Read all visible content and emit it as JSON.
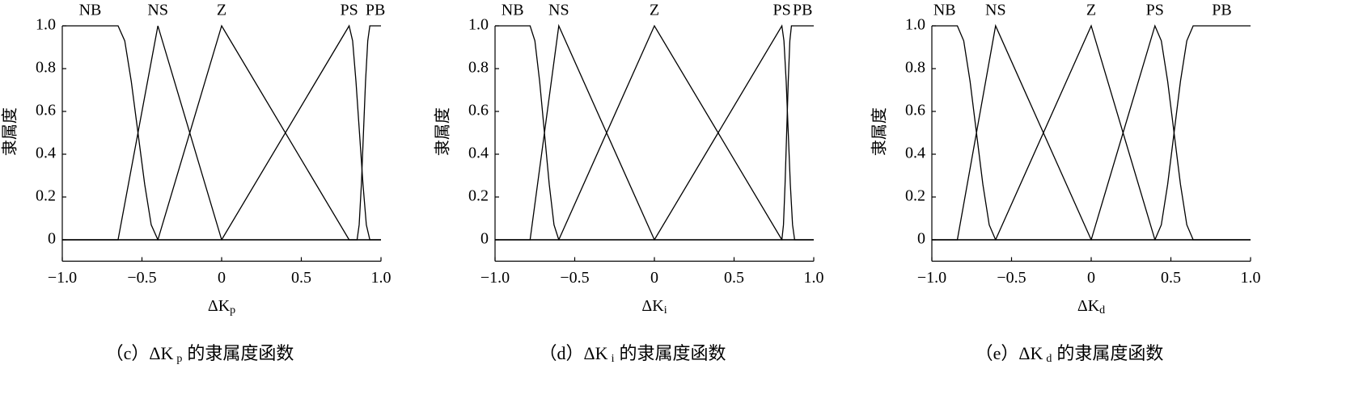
{
  "chart_data": [
    {
      "type": "line",
      "x_label": "ΔK",
      "x_label_sub": "p",
      "y_label": "隶属度",
      "caption": [
        "（c）ΔK",
        "p",
        "的隶属度函数"
      ],
      "xlim": [
        -1,
        1
      ],
      "ylim": [
        -0.1,
        1
      ],
      "xticks": [
        {
          "value": -1,
          "label": "−1.0"
        },
        {
          "value": -0.5,
          "label": "−0.5"
        },
        0,
        0.5,
        {
          "value": 1,
          "label": "1.0"
        }
      ],
      "yticks": [
        0,
        0.2,
        0.4,
        0.6,
        0.8,
        {
          "value": 1,
          "label": "1.0"
        }
      ],
      "series": [
        {
          "name": "NB",
          "color": "#000000",
          "x": [
            -1,
            -0.65,
            -0.608,
            -0.567,
            -0.525,
            -0.483,
            -0.442,
            -0.4,
            1
          ],
          "values": [
            1,
            1,
            0.93,
            0.74,
            0.5,
            0.26,
            0.07,
            0,
            0
          ]
        },
        {
          "name": "NS",
          "color": "#000000",
          "x": [
            -1,
            -0.65,
            -0.4,
            0,
            1
          ],
          "values": [
            0,
            0,
            1,
            0,
            0
          ]
        },
        {
          "name": "Z",
          "color": "#000000",
          "x": [
            -1,
            -0.4,
            0,
            0.8,
            1
          ],
          "values": [
            0,
            0,
            1,
            0,
            0
          ]
        },
        {
          "name": "PS",
          "color": "#000000",
          "x": [
            -1,
            0,
            0.8,
            0.822,
            0.843,
            0.865,
            0.887,
            0.908,
            0.93,
            1
          ],
          "values": [
            0,
            0,
            1,
            0.93,
            0.74,
            0.5,
            0.26,
            0.07,
            0,
            0
          ]
        },
        {
          "name": "PB",
          "color": "#000000",
          "x": [
            -1,
            0.85,
            0.863,
            0.877,
            0.89,
            0.903,
            0.917,
            0.93,
            1
          ],
          "values": [
            0,
            0,
            0.07,
            0.26,
            0.5,
            0.74,
            0.93,
            1,
            1
          ]
        }
      ]
    },
    {
      "type": "line",
      "x_label": "ΔK",
      "x_label_sub": "i",
      "y_label": "隶属度",
      "caption": [
        "（d）ΔK",
        "i",
        "的隶属度函数"
      ],
      "xlim": [
        -1,
        1
      ],
      "ylim": [
        -0.1,
        1
      ],
      "xticks": [
        {
          "value": -1,
          "label": "−1.0"
        },
        {
          "value": -0.5,
          "label": "−0.5"
        },
        0,
        0.5,
        {
          "value": 1,
          "label": "1.0"
        }
      ],
      "yticks": [
        0,
        0.2,
        0.4,
        0.6,
        0.8,
        {
          "value": 1,
          "label": "1.0"
        }
      ],
      "series": [
        {
          "name": "NB",
          "color": "#000000",
          "x": [
            -1,
            -0.78,
            -0.75,
            -0.72,
            -0.69,
            -0.66,
            -0.63,
            -0.6,
            1
          ],
          "values": [
            1,
            1,
            0.93,
            0.74,
            0.5,
            0.26,
            0.07,
            0,
            0
          ]
        },
        {
          "name": "NS",
          "color": "#000000",
          "x": [
            -1,
            -0.78,
            -0.6,
            0,
            1
          ],
          "values": [
            0,
            0,
            1,
            0,
            0
          ]
        },
        {
          "name": "Z",
          "color": "#000000",
          "x": [
            -1,
            -0.6,
            0,
            0.8,
            1
          ],
          "values": [
            0,
            0,
            1,
            0,
            0
          ]
        },
        {
          "name": "PS",
          "color": "#000000",
          "x": [
            -1,
            0,
            0.8,
            0.813,
            0.827,
            0.84,
            0.853,
            0.867,
            0.88,
            1
          ],
          "values": [
            0,
            0,
            1,
            0.93,
            0.74,
            0.5,
            0.26,
            0.07,
            0,
            0
          ]
        },
        {
          "name": "PB",
          "color": "#000000",
          "x": [
            -1,
            0.8,
            0.81,
            0.82,
            0.83,
            0.84,
            0.85,
            0.86,
            1
          ],
          "values": [
            0,
            0,
            0.07,
            0.26,
            0.5,
            0.74,
            0.93,
            1,
            1
          ]
        }
      ]
    },
    {
      "type": "line",
      "x_label": "ΔK",
      "x_label_sub": "d",
      "y_label": "隶属度",
      "caption": [
        "（e）ΔK",
        "d",
        "的隶属度函数"
      ],
      "xlim": [
        -1,
        1
      ],
      "ylim": [
        -0.1,
        1
      ],
      "xticks": [
        {
          "value": -1,
          "label": "−1.0"
        },
        {
          "value": -0.5,
          "label": "−0.5"
        },
        0,
        0.5,
        {
          "value": 1,
          "label": "1.0"
        }
      ],
      "yticks": [
        0,
        0.2,
        0.4,
        0.6,
        0.8,
        {
          "value": 1,
          "label": "1.0"
        }
      ],
      "series": [
        {
          "name": "NB",
          "color": "#000000",
          "x": [
            -1,
            -0.84,
            -0.8,
            -0.76,
            -0.72,
            -0.68,
            -0.64,
            -0.6,
            1
          ],
          "values": [
            1,
            1,
            0.93,
            0.74,
            0.5,
            0.26,
            0.07,
            0,
            0
          ]
        },
        {
          "name": "NS",
          "color": "#000000",
          "x": [
            -1,
            -0.84,
            -0.6,
            0,
            1
          ],
          "values": [
            0,
            0,
            1,
            0,
            0
          ]
        },
        {
          "name": "Z",
          "color": "#000000",
          "x": [
            -1,
            -0.6,
            0,
            0.4,
            1
          ],
          "values": [
            0,
            0,
            1,
            0,
            0
          ]
        },
        {
          "name": "PS",
          "color": "#000000",
          "x": [
            -1,
            0,
            0.4,
            0.44,
            0.48,
            0.52,
            0.56,
            0.6,
            0.64,
            1
          ],
          "values": [
            0,
            0,
            1,
            0.93,
            0.74,
            0.5,
            0.26,
            0.07,
            0,
            0
          ]
        },
        {
          "name": "PB",
          "color": "#000000",
          "x": [
            -1,
            0.4,
            0.44,
            0.48,
            0.52,
            0.56,
            0.6,
            0.64,
            1
          ],
          "values": [
            0,
            0,
            0.07,
            0.26,
            0.5,
            0.74,
            0.93,
            1,
            1
          ]
        }
      ]
    }
  ]
}
